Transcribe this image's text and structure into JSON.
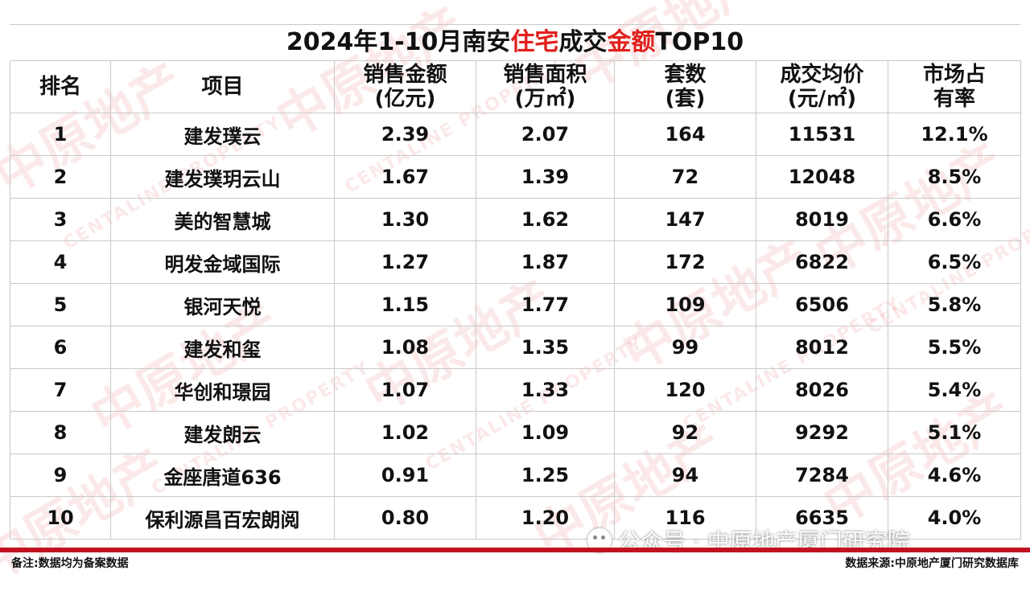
{
  "title": {
    "part1": "2024年1-10月南安",
    "part2": "住宅",
    "part3": "成交",
    "part4": "金额",
    "part5": "TOP10"
  },
  "table": {
    "headers": [
      {
        "line1": "排名",
        "line2": ""
      },
      {
        "line1": "项目",
        "line2": ""
      },
      {
        "line1": "销售金额",
        "line2": "(亿元)"
      },
      {
        "line1": "销售面积",
        "line2": "(万㎡)"
      },
      {
        "line1": "套数",
        "line2": "(套)"
      },
      {
        "line1": "成交均价",
        "line2": "(元/㎡)"
      },
      {
        "line1": "市场占",
        "line2": "有率"
      }
    ],
    "rows": [
      [
        "1",
        "建发璞云",
        "2.39",
        "2.07",
        "164",
        "11531",
        "12.1%"
      ],
      [
        "2",
        "建发璞玥云山",
        "1.67",
        "1.39",
        "72",
        "12048",
        "8.5%"
      ],
      [
        "3",
        "美的智慧城",
        "1.30",
        "1.62",
        "147",
        "8019",
        "6.6%"
      ],
      [
        "4",
        "明发金域国际",
        "1.27",
        "1.87",
        "172",
        "6822",
        "6.5%"
      ],
      [
        "5",
        "银河天悦",
        "1.15",
        "1.77",
        "109",
        "6506",
        "5.8%"
      ],
      [
        "6",
        "建发和玺",
        "1.08",
        "1.35",
        "99",
        "8012",
        "5.5%"
      ],
      [
        "7",
        "华创和璟园",
        "1.07",
        "1.33",
        "120",
        "8026",
        "5.4%"
      ],
      [
        "8",
        "建发朗云",
        "1.02",
        "1.09",
        "92",
        "9292",
        "5.1%"
      ],
      [
        "9",
        "金座唐道636",
        "0.91",
        "1.25",
        "94",
        "7284",
        "4.6%"
      ],
      [
        "10",
        "保利源昌百宏朗阅",
        "0.80",
        "1.20",
        "116",
        "6635",
        "4.0%"
      ]
    ]
  },
  "footer": {
    "note": "备注:数据均为备案数据",
    "source": "数据来源:中原地产厦门研究数据库"
  },
  "watermark": {
    "account": "公众号 · 中原地产厦门研究院",
    "logo_cn": "中原地产",
    "logo_en": "CENTALINE PROPERTY"
  },
  "colors": {
    "accent_red": "#e0201c",
    "footer_bar": "#c1121f",
    "border": "#c9c9c9"
  }
}
